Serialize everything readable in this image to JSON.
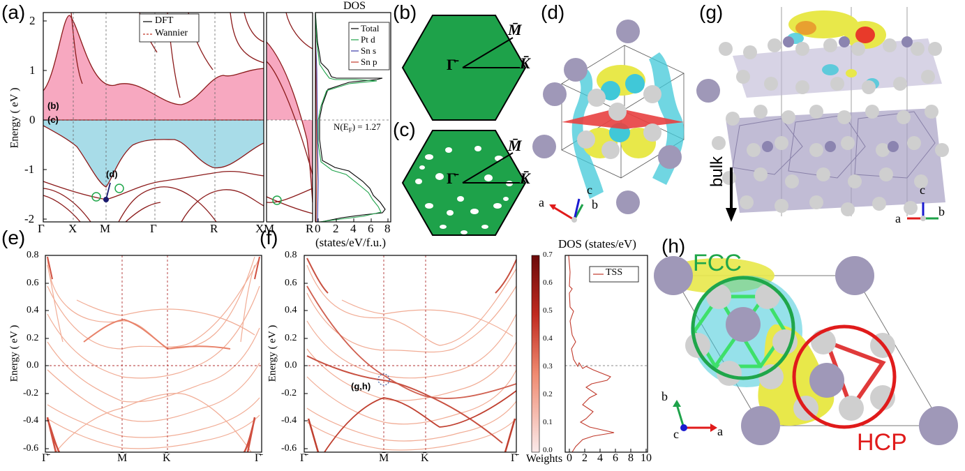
{
  "panel_labels": {
    "a": "(a)",
    "b": "(b)",
    "c": "(c)",
    "d": "(d)",
    "e": "(e)",
    "f": "(f)",
    "g": "(g)",
    "h": "(h)"
  },
  "colors": {
    "pink": "#f7a8c0",
    "cyan": "#a8dce8",
    "band": "#8b1a1a",
    "green": "#1ea24a",
    "atom_purple": "#9f98b8",
    "atom_gray": "#cfcfcf",
    "iso_yellow": "#e8e84a",
    "iso_cyan": "#40c8d8",
    "tss_red": "#c0392b",
    "circle_green": "#1fa64a",
    "circle_red": "#e01b1b"
  },
  "panel_a": {
    "ylabel": "Energy ( eV )",
    "yticks": [
      "-2",
      "-1",
      "0",
      "1",
      "2"
    ],
    "kpoints": [
      "Γ",
      "X",
      "M",
      "Γ",
      "R",
      "X"
    ],
    "kpoints_right": [
      "M",
      "R"
    ],
    "legend": [
      "DFT",
      "Wannier"
    ],
    "annotations": {
      "b": "(b)",
      "c": "(c)",
      "d": "(d)"
    },
    "dos_title": "DOS",
    "dos_legend": [
      "Total",
      "Pt d",
      "Sn s",
      "Sn p"
    ],
    "dos_xticks": [
      "0",
      "2",
      "4",
      "6",
      "8"
    ],
    "dos_xlabel": "(states/eV/f.u.)",
    "nef_label": "N(E",
    "nef_sub": "F",
    "nef_value": ") = 1.27"
  },
  "panel_b": {
    "gamma": "Γ̄",
    "m": "M̄",
    "k": "K̄"
  },
  "panel_c": {
    "gamma": "Γ̄",
    "m": "M̄",
    "k": "K̄"
  },
  "panel_d": {
    "axes": [
      "a",
      "b",
      "c"
    ]
  },
  "panel_g": {
    "bulk_label": "bulk",
    "axes": [
      "a",
      "b",
      "c"
    ]
  },
  "panel_e": {
    "ylabel": "Energy ( eV )",
    "yticks": [
      "-0.6",
      "-0.4",
      "-0.2",
      "0.0",
      "0.2",
      "0.4",
      "0.6",
      "0.8"
    ],
    "kpoints": [
      "Γ̄",
      "M̄",
      "K̄",
      "Γ̄"
    ]
  },
  "panel_f": {
    "ylabel": "Energy ( eV )",
    "yticks": [
      "-0.6",
      "-0.4",
      "-0.2",
      "0.0",
      "0.2",
      "0.4",
      "0.6",
      "0.8"
    ],
    "kpoints": [
      "Γ̄",
      "M̄",
      "K̄",
      "Γ̄"
    ],
    "annotation": "(g,h)",
    "colorbar_ticks": [
      "0.0",
      "0.1",
      "0.2",
      "0.3",
      "0.4",
      "0.5",
      "0.6",
      "0.7"
    ],
    "colorbar_label": "Weights",
    "dos_title": "DOS (states/eV)",
    "dos_legend": "TSS",
    "dos_xticks": [
      "0",
      "2",
      "4",
      "6",
      "8",
      "10"
    ]
  },
  "panel_h": {
    "fcc": "FCC",
    "hcp": "HCP",
    "axes": [
      "a",
      "b",
      "c"
    ]
  }
}
